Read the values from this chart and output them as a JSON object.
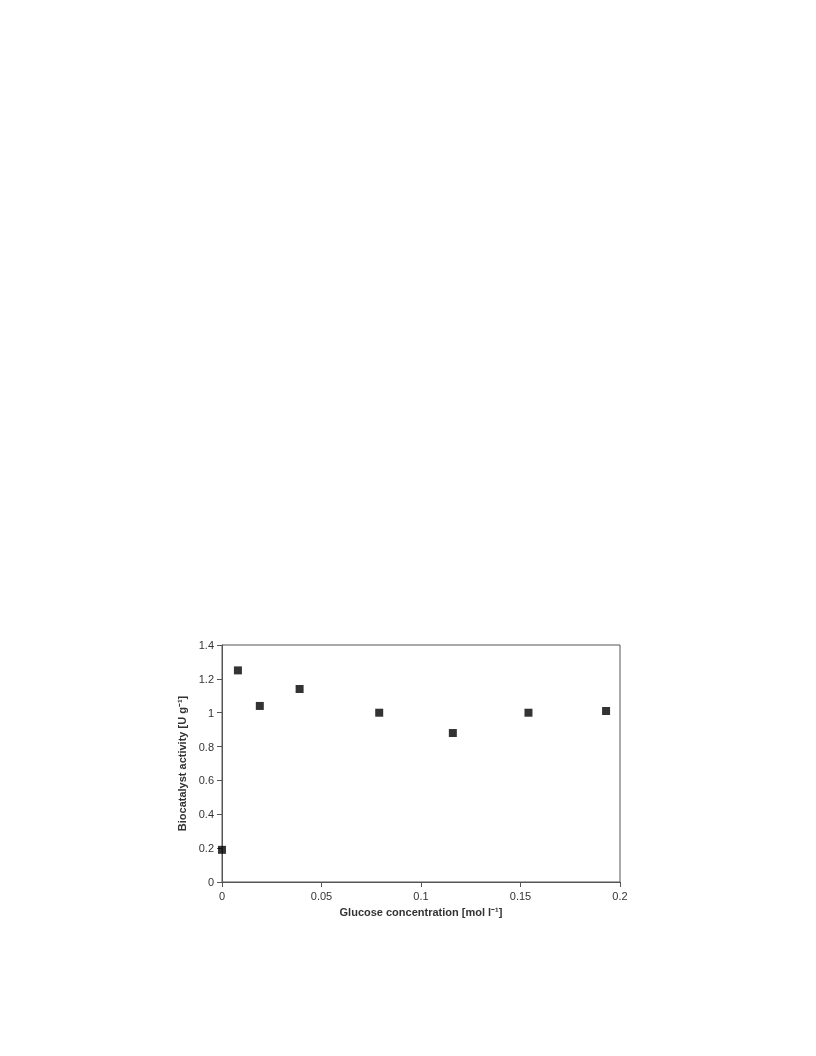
{
  "chart_data": {
    "type": "scatter",
    "xlabel": "Glucose concentration [mol l⁻¹]",
    "ylabel": "Biocatalyst activity [U g⁻¹]",
    "x": [
      0,
      0.008,
      0.019,
      0.039,
      0.079,
      0.116,
      0.154,
      0.193
    ],
    "series": [
      {
        "color": "#000000",
        "values": [
          0.19,
          1.25,
          1.04,
          1.14,
          1.0,
          0.88,
          1.0,
          1.01
        ]
      }
    ],
    "xlim": [
      0,
      0.2
    ],
    "xticks": [
      0,
      0.05,
      0.1,
      0.15,
      0.2
    ],
    "ylim": [
      0,
      1.4
    ],
    "yticks": [
      0,
      0.2,
      0.4,
      0.6,
      0.8,
      1,
      1.2,
      1.4
    ],
    "grid": false,
    "marker": "square"
  }
}
